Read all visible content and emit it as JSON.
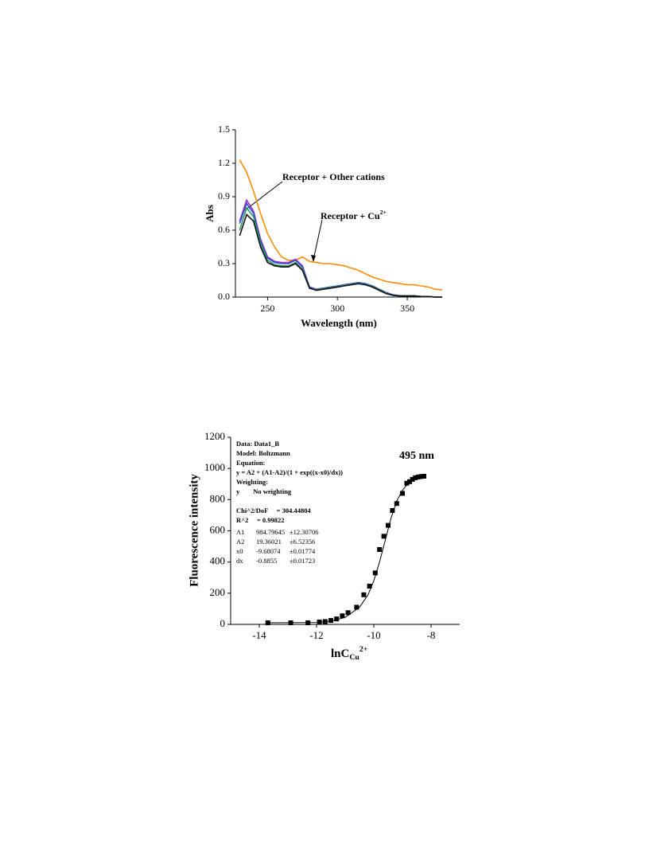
{
  "chart_data": [
    {
      "type": "line",
      "y_label": "Abs",
      "x_label": "Wavelength (nm)",
      "annotations": [
        {
          "text": "Receptor + Other cations"
        },
        {
          "text": "Receptor + Cu",
          "sup": "2+"
        }
      ],
      "xlim": [
        227,
        375
      ],
      "ylim": [
        0,
        1.5
      ],
      "xticks": [
        250,
        300,
        350
      ],
      "yticks": [
        {
          "value": 0,
          "label": "0.0"
        },
        0.3,
        0.6,
        0.9,
        1.2,
        1.5
      ],
      "x": [
        230,
        235,
        240,
        245,
        250,
        255,
        260,
        265,
        270,
        275,
        280,
        285,
        290,
        295,
        300,
        305,
        310,
        315,
        320,
        325,
        330,
        335,
        340,
        345,
        350,
        355,
        360,
        365,
        370,
        375
      ],
      "series": [
        {
          "color": "#ff8c00",
          "values": [
            1.23,
            1.12,
            0.95,
            0.75,
            0.57,
            0.45,
            0.36,
            0.33,
            0.33,
            0.36,
            0.32,
            0.31,
            0.3,
            0.3,
            0.29,
            0.28,
            0.26,
            0.24,
            0.21,
            0.18,
            0.16,
            0.14,
            0.13,
            0.12,
            0.11,
            0.11,
            0.1,
            0.09,
            0.07,
            0.065
          ]
        },
        {
          "color": "#9b30c8",
          "values": [
            0.68,
            0.87,
            0.77,
            0.52,
            0.36,
            0.32,
            0.31,
            0.31,
            0.34,
            0.28,
            0.09,
            0.07,
            0.08,
            0.09,
            0.1,
            0.11,
            0.12,
            0.13,
            0.12,
            0.1,
            0.07,
            0.04,
            0.02,
            0.01,
            0.01,
            0.01,
            0.005,
            0.005,
            0,
            0
          ]
        },
        {
          "color": "#3050d0",
          "values": [
            0.66,
            0.84,
            0.75,
            0.5,
            0.35,
            0.31,
            0.3,
            0.3,
            0.33,
            0.27,
            0.09,
            0.07,
            0.08,
            0.09,
            0.1,
            0.11,
            0.12,
            0.13,
            0.12,
            0.1,
            0.07,
            0.04,
            0.02,
            0.01,
            0.01,
            0.01,
            0.005,
            0.005,
            0,
            0
          ]
        },
        {
          "color": "#2e9a5a",
          "values": [
            0.6,
            0.8,
            0.72,
            0.48,
            0.33,
            0.29,
            0.28,
            0.28,
            0.31,
            0.25,
            0.08,
            0.065,
            0.075,
            0.085,
            0.095,
            0.105,
            0.115,
            0.125,
            0.115,
            0.095,
            0.065,
            0.035,
            0.015,
            0.01,
            0.01,
            0.01,
            0.005,
            0.005,
            0,
            0
          ]
        },
        {
          "color": "#111111",
          "values": [
            0.55,
            0.74,
            0.68,
            0.45,
            0.31,
            0.28,
            0.27,
            0.27,
            0.3,
            0.24,
            0.08,
            0.06,
            0.07,
            0.08,
            0.09,
            0.1,
            0.11,
            0.12,
            0.11,
            0.09,
            0.06,
            0.03,
            0.015,
            0.01,
            0.01,
            0.01,
            0.005,
            0.005,
            0,
            0
          ]
        }
      ]
    },
    {
      "type": "scatter",
      "y_label": "Fluorescence intensity",
      "x_label": {
        "text": "lnC",
        "sub": "Cu",
        "sup": "2+"
      },
      "annotation": "495 nm",
      "fit_report": [
        "Data: Data1_B",
        "Model: Boltzmann",
        "Equation:",
        "y = A2 + (A1-A2)/(1 + exp((x-x0)/dx))",
        "Weighting:",
        "y        No weighting",
        "Chi^2/DoF     = 304.44804",
        "R^2     = 0.99822"
      ],
      "fit_parameters": [
        [
          "A1",
          "984.79645",
          "±12.30706"
        ],
        [
          "A2",
          "19.36021",
          "±6.52356"
        ],
        [
          "x0",
          "-9.68074",
          "±0.01774"
        ],
        [
          "dx",
          "-0.8855",
          "±0.01723"
        ]
      ],
      "xlim": [
        -15,
        -7
      ],
      "ylim": [
        0,
        1200
      ],
      "xticks": [
        -14,
        -12,
        -10,
        -8
      ],
      "yticks": [
        0,
        200,
        400,
        600,
        800,
        1000,
        1200
      ],
      "series": [
        {
          "style": "markers",
          "color": "#000000",
          "x": [
            -13.7,
            -12.9,
            -12.3,
            -11.9,
            -11.7,
            -11.5,
            -11.3,
            -11.1,
            -10.9,
            -10.6,
            -10.35,
            -10.15,
            -9.95,
            -9.8,
            -9.65,
            -9.5,
            -9.35,
            -9.2,
            -9.0,
            -8.85,
            -8.75,
            -8.65,
            -8.55,
            -8.45,
            -8.35,
            -8.25
          ],
          "values": [
            10,
            10,
            10,
            15,
            18,
            25,
            35,
            55,
            75,
            110,
            190,
            245,
            330,
            480,
            565,
            635,
            730,
            775,
            840,
            905,
            915,
            930,
            940,
            945,
            948,
            950
          ]
        },
        {
          "style": "line",
          "color": "#000000",
          "x": [
            -13.7,
            -12,
            -11.5,
            -11,
            -10.5,
            -10.2,
            -10,
            -9.8,
            -9.6,
            -9.4,
            -9.2,
            -9,
            -8.8,
            -8.6,
            -8.4,
            -8.25
          ],
          "values": [
            10,
            12,
            20,
            45,
            110,
            190,
            280,
            400,
            540,
            680,
            790,
            860,
            905,
            930,
            942,
            948
          ]
        }
      ]
    }
  ]
}
